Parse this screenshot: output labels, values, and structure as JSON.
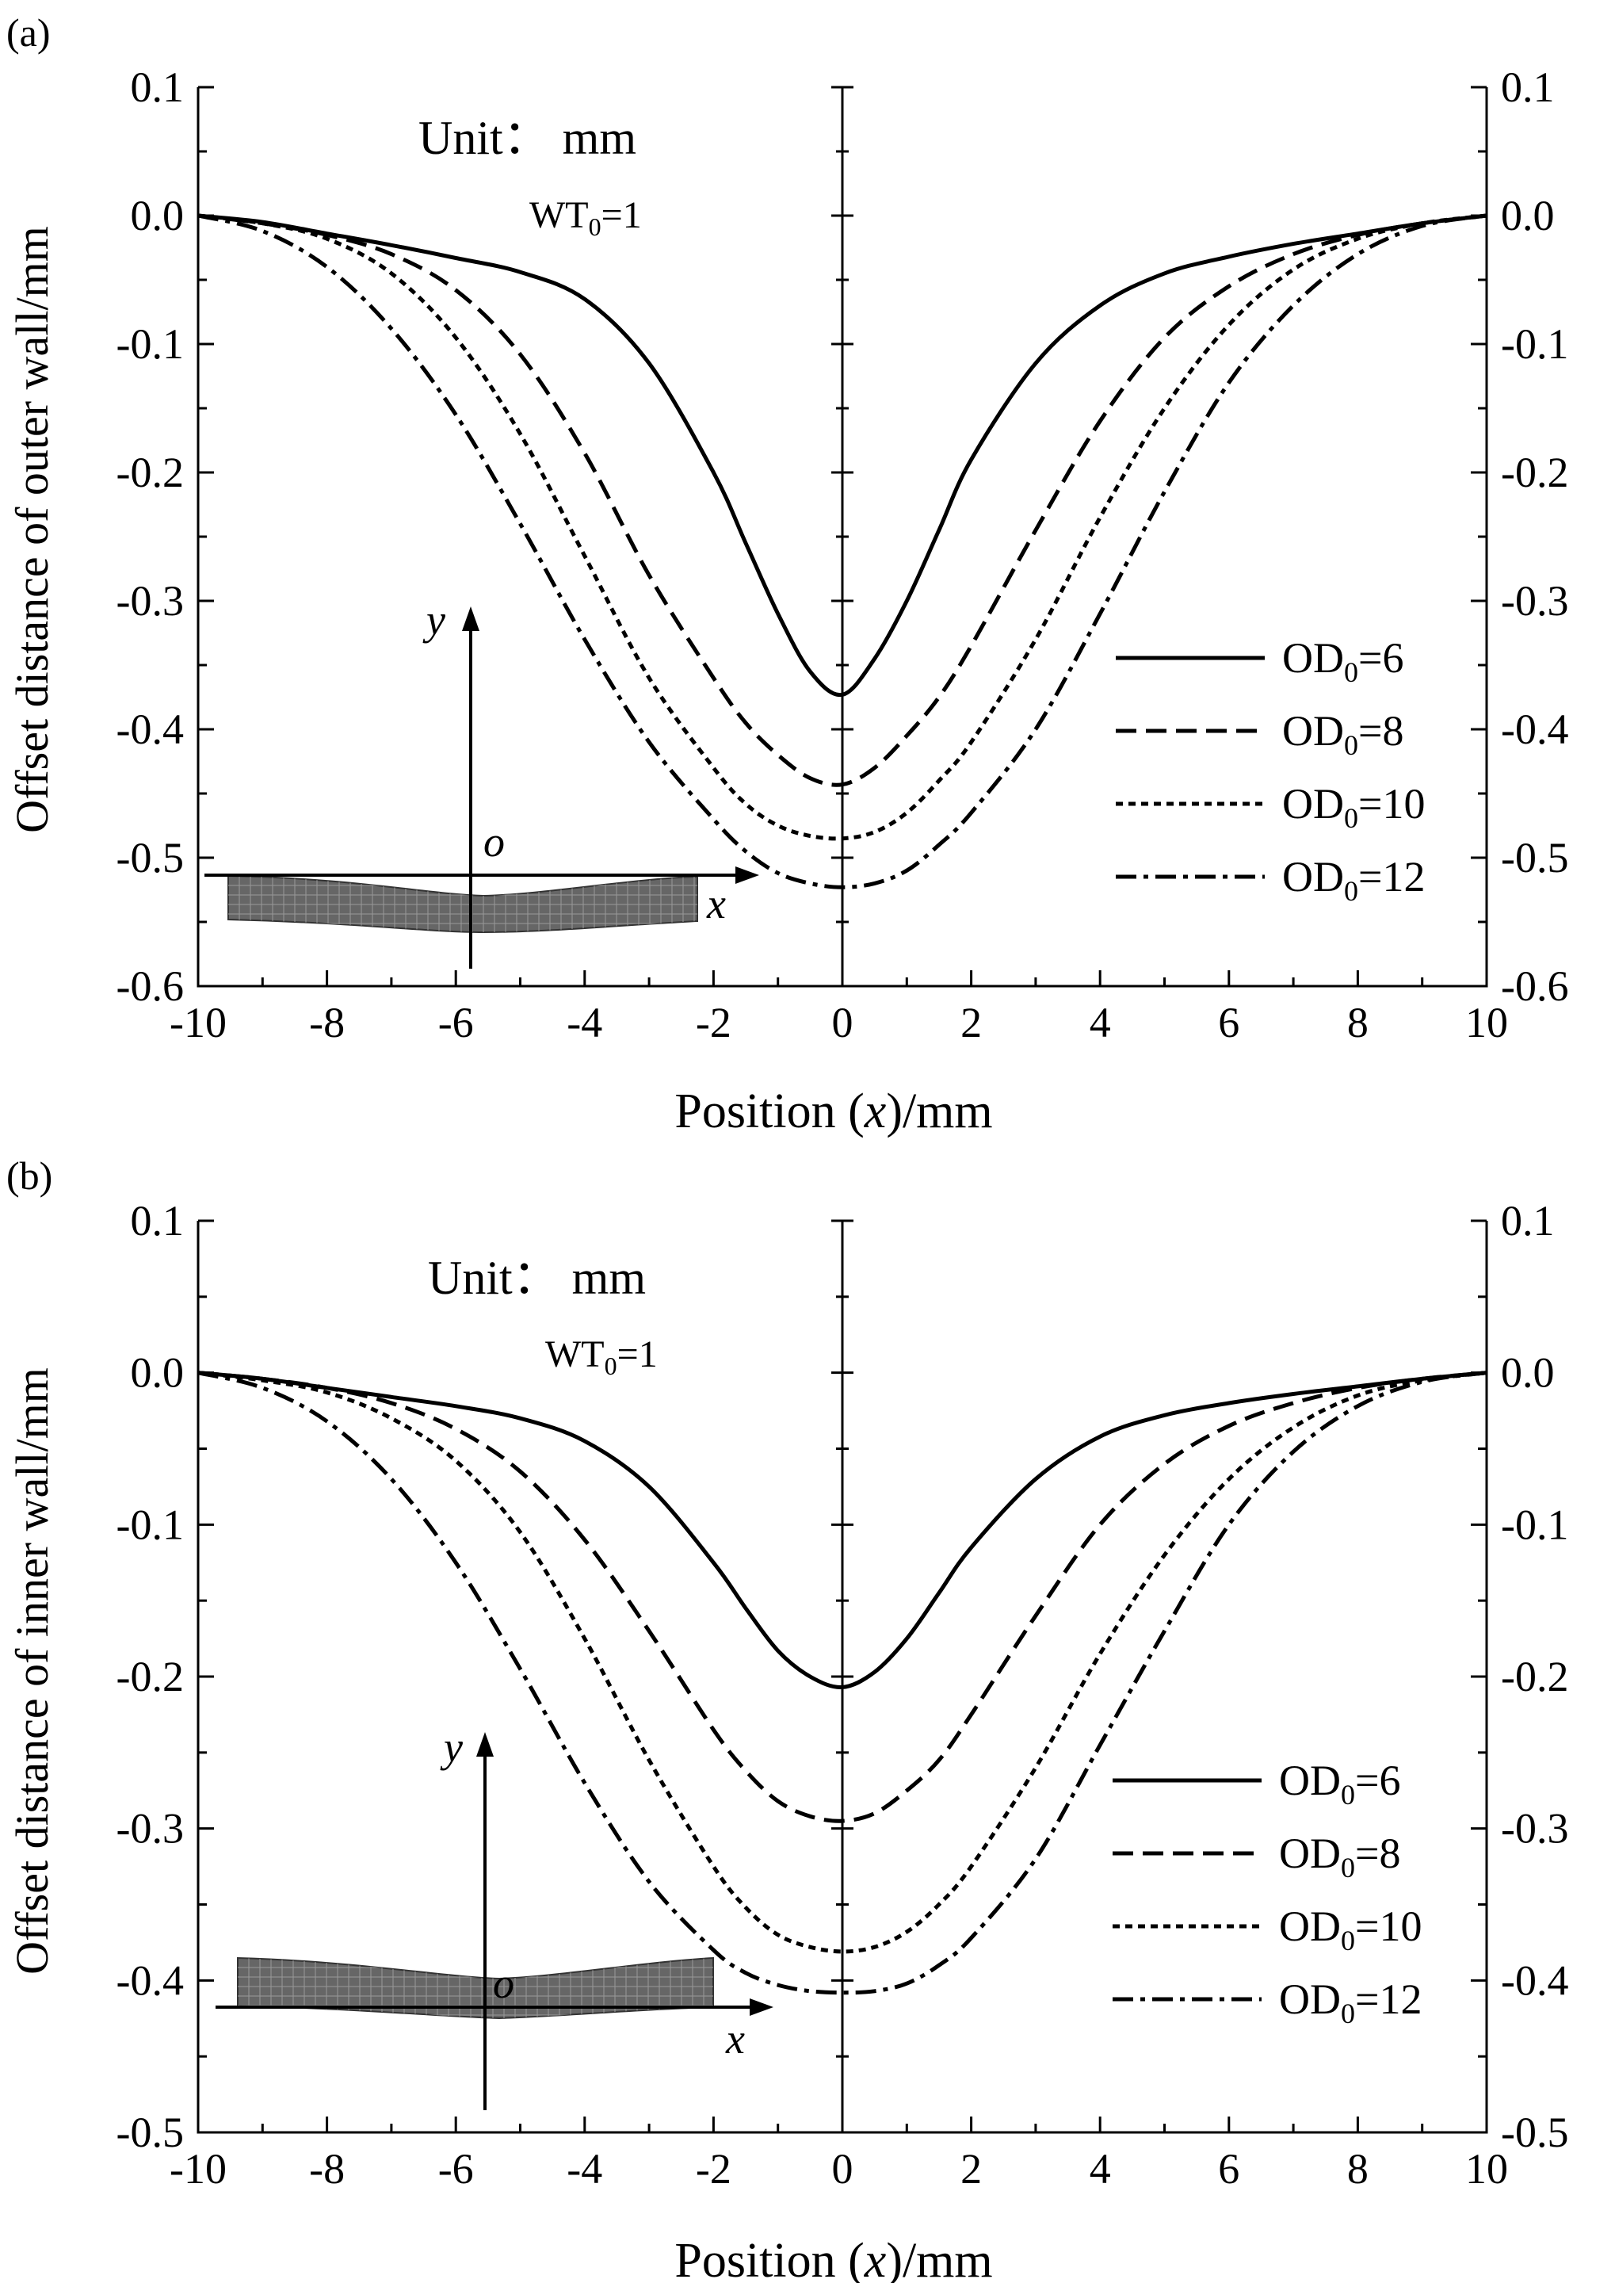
{
  "chart_data": [
    {
      "type": "line",
      "panel_label": "(a)",
      "xlabel_parts": [
        "Position (",
        "x",
        ")/mm"
      ],
      "ylabel": "Offset distance of outer wall/mm",
      "xlim": [
        -10,
        10
      ],
      "ylim": [
        -0.6,
        0.1
      ],
      "xticks": [
        -10,
        -8,
        -6,
        -4,
        -2,
        0,
        2,
        4,
        6,
        8,
        10
      ],
      "xtick_labels": [
        "-10",
        "-8",
        "-6",
        "-4",
        "-2",
        "0",
        "2",
        "4",
        "6",
        "8",
        "10"
      ],
      "yticks": [
        0.1,
        0.0,
        -0.1,
        -0.2,
        -0.3,
        -0.4,
        -0.5,
        -0.6
      ],
      "ytick_labels": [
        "0.1",
        "0.0",
        "-0.1",
        "-0.2",
        "-0.3",
        "-0.4",
        "-0.5",
        "-0.6"
      ],
      "right_axis_mirrors_left": true,
      "center_vertical_axis_at_x": 0,
      "annotations": {
        "unit": "Unit： mm",
        "wt_main": "WT",
        "wt_sub": "0",
        "wt_value": "=1"
      },
      "inset": {
        "axis_y": "y",
        "axis_x": "x",
        "origin": "o",
        "mesh_shape": "sagging"
      },
      "legend_position": "right-middle",
      "x": [
        -10,
        -9,
        -8,
        -7,
        -6,
        -5,
        -4,
        -3,
        -2,
        -1.5,
        -1,
        -0.5,
        0,
        0.5,
        1,
        1.5,
        2,
        3,
        4,
        5,
        6,
        7,
        8,
        9,
        10
      ],
      "series": [
        {
          "label_main": "OD",
          "label_sub": "0",
          "label_value": "=6",
          "dash": "solid",
          "values": [
            0,
            -0.005,
            -0.014,
            -0.023,
            -0.033,
            -0.044,
            -0.065,
            -0.115,
            -0.2,
            -0.255,
            -0.31,
            -0.355,
            -0.373,
            -0.345,
            -0.3,
            -0.245,
            -0.19,
            -0.115,
            -0.07,
            -0.045,
            -0.032,
            -0.022,
            -0.014,
            -0.006,
            0
          ]
        },
        {
          "label_main": "OD",
          "label_sub": "0",
          "label_value": "=8",
          "dash": "dashed",
          "values": [
            0,
            -0.006,
            -0.015,
            -0.03,
            -0.058,
            -0.108,
            -0.185,
            -0.28,
            -0.36,
            -0.395,
            -0.42,
            -0.438,
            -0.443,
            -0.43,
            -0.405,
            -0.375,
            -0.335,
            -0.245,
            -0.16,
            -0.095,
            -0.055,
            -0.03,
            -0.015,
            -0.006,
            0
          ]
        },
        {
          "label_main": "OD",
          "label_sub": "0",
          "label_value": "=10",
          "dash": "dotted",
          "values": [
            0,
            -0.006,
            -0.018,
            -0.045,
            -0.095,
            -0.17,
            -0.265,
            -0.36,
            -0.43,
            -0.458,
            -0.475,
            -0.483,
            -0.485,
            -0.48,
            -0.465,
            -0.44,
            -0.41,
            -0.33,
            -0.235,
            -0.15,
            -0.085,
            -0.042,
            -0.018,
            -0.006,
            0
          ]
        },
        {
          "label_main": "OD",
          "label_sub": "0",
          "label_value": "=12",
          "dash": "dash-dot",
          "values": [
            0,
            -0.012,
            -0.04,
            -0.088,
            -0.155,
            -0.24,
            -0.33,
            -0.41,
            -0.47,
            -0.495,
            -0.512,
            -0.52,
            -0.523,
            -0.52,
            -0.51,
            -0.49,
            -0.465,
            -0.4,
            -0.31,
            -0.215,
            -0.13,
            -0.07,
            -0.03,
            -0.008,
            0
          ]
        }
      ]
    },
    {
      "type": "line",
      "panel_label": "(b)",
      "xlabel_parts": [
        "Position (",
        "x",
        ")/mm"
      ],
      "ylabel": "Offset distance of inner wall/mm",
      "xlim": [
        -10,
        10
      ],
      "ylim": [
        -0.5,
        0.1
      ],
      "xticks": [
        -10,
        -8,
        -6,
        -4,
        -2,
        0,
        2,
        4,
        6,
        8,
        10
      ],
      "xtick_labels": [
        "-10",
        "-8",
        "-6",
        "-4",
        "-2",
        "0",
        "2",
        "4",
        "6",
        "8",
        "10"
      ],
      "yticks": [
        0.1,
        0.0,
        -0.1,
        -0.2,
        -0.3,
        -0.4,
        -0.5
      ],
      "ytick_labels": [
        "0.1",
        "0.0",
        "-0.1",
        "-0.2",
        "-0.3",
        "-0.4",
        "-0.5"
      ],
      "right_axis_mirrors_left": true,
      "center_vertical_axis_at_x": 0,
      "annotations": {
        "unit": "Unit： mm",
        "wt_main": "WT",
        "wt_sub": "0",
        "wt_value": "=1"
      },
      "inset": {
        "axis_y": "y",
        "axis_x": "x",
        "origin": "o",
        "mesh_shape": "sagging"
      },
      "legend_position": "right-lower",
      "x": [
        -10,
        -9,
        -8,
        -7,
        -6,
        -5,
        -4,
        -3,
        -2,
        -1.5,
        -1,
        -0.5,
        0,
        0.5,
        1,
        1.5,
        2,
        3,
        4,
        5,
        6,
        7,
        8,
        9,
        10
      ],
      "series": [
        {
          "label_main": "OD",
          "label_sub": "0",
          "label_value": "=6",
          "dash": "solid",
          "values": [
            0,
            -0.004,
            -0.01,
            -0.016,
            -0.022,
            -0.03,
            -0.045,
            -0.075,
            -0.125,
            -0.155,
            -0.183,
            -0.2,
            -0.207,
            -0.197,
            -0.175,
            -0.145,
            -0.115,
            -0.07,
            -0.042,
            -0.028,
            -0.02,
            -0.014,
            -0.009,
            -0.004,
            0
          ]
        },
        {
          "label_main": "OD",
          "label_sub": "0",
          "label_value": "=8",
          "dash": "dashed",
          "values": [
            0,
            -0.004,
            -0.01,
            -0.02,
            -0.037,
            -0.065,
            -0.11,
            -0.17,
            -0.235,
            -0.262,
            -0.282,
            -0.292,
            -0.295,
            -0.29,
            -0.275,
            -0.255,
            -0.225,
            -0.16,
            -0.1,
            -0.06,
            -0.035,
            -0.02,
            -0.01,
            -0.004,
            0
          ]
        },
        {
          "label_main": "OD",
          "label_sub": "0",
          "label_value": "=10",
          "dash": "dotted",
          "values": [
            0,
            -0.005,
            -0.013,
            -0.03,
            -0.058,
            -0.105,
            -0.175,
            -0.255,
            -0.325,
            -0.352,
            -0.37,
            -0.378,
            -0.381,
            -0.378,
            -0.368,
            -0.35,
            -0.325,
            -0.26,
            -0.185,
            -0.12,
            -0.07,
            -0.036,
            -0.015,
            -0.005,
            0
          ]
        },
        {
          "label_main": "OD",
          "label_sub": "0",
          "label_value": "=12",
          "dash": "dash-dot",
          "values": [
            0,
            -0.01,
            -0.032,
            -0.07,
            -0.125,
            -0.195,
            -0.27,
            -0.335,
            -0.38,
            -0.395,
            -0.403,
            -0.407,
            -0.408,
            -0.407,
            -0.402,
            -0.39,
            -0.372,
            -0.32,
            -0.245,
            -0.17,
            -0.1,
            -0.052,
            -0.022,
            -0.006,
            0
          ]
        }
      ]
    }
  ]
}
